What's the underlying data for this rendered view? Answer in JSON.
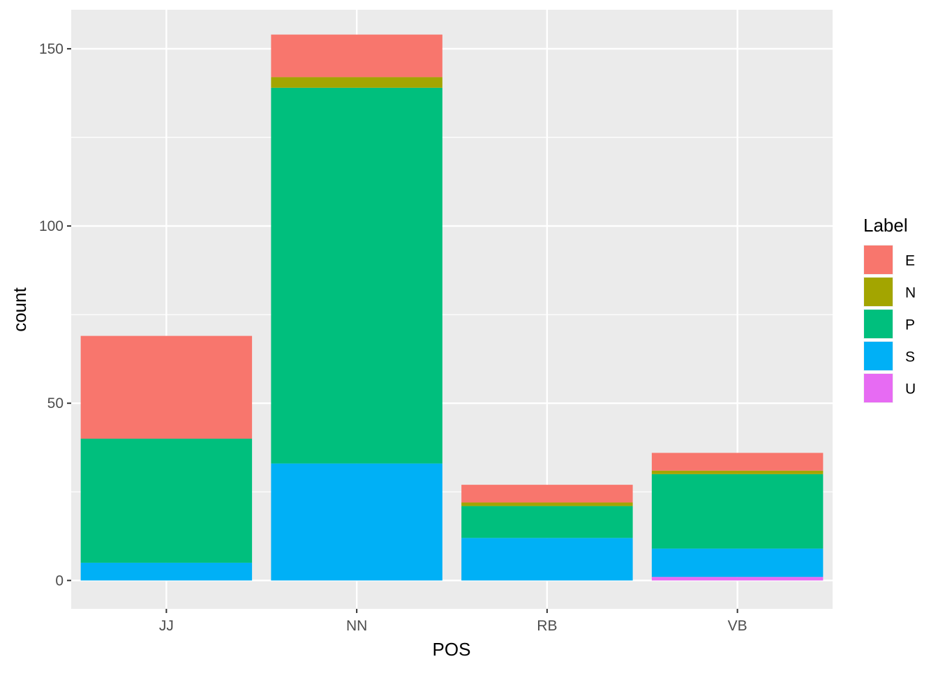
{
  "chart_data": {
    "type": "bar",
    "stacked": true,
    "title": "",
    "xlabel": "POS",
    "ylabel": "count",
    "categories": [
      "JJ",
      "NN",
      "RB",
      "VB"
    ],
    "ylim": [
      -8,
      161
    ],
    "yticks": [
      0,
      50,
      100,
      150
    ],
    "grid": true,
    "legend": {
      "title": "Label",
      "position": "right"
    },
    "series": [
      {
        "name": "U",
        "color": "#E76BF3",
        "values": [
          0,
          0,
          0,
          1
        ]
      },
      {
        "name": "S",
        "color": "#00B0F6",
        "values": [
          5,
          33,
          12,
          8
        ]
      },
      {
        "name": "P",
        "color": "#00BF7D",
        "values": [
          35,
          106,
          9,
          21
        ]
      },
      {
        "name": "N",
        "color": "#A3A500",
        "values": [
          0,
          3,
          1,
          1
        ]
      },
      {
        "name": "E",
        "color": "#F8766D",
        "values": [
          29,
          12,
          5,
          5
        ]
      }
    ],
    "legend_order": [
      "E",
      "N",
      "P",
      "S",
      "U"
    ]
  }
}
